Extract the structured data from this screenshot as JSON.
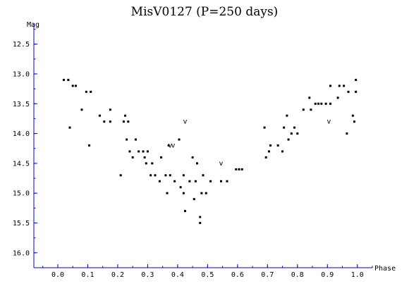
{
  "chart_data": {
    "type": "scatter",
    "title": "MisV0127 (P=250 days)",
    "xlabel": "Phase",
    "ylabel": "Mag",
    "xlim": [
      -0.08,
      1.05
    ],
    "ylim": [
      12.15,
      16.25
    ],
    "y_inverted": true,
    "x_ticks": [
      "0.0",
      "0.1",
      "0.2",
      "0.3",
      "0.4",
      "0.5",
      "0.6",
      "0.7",
      "0.8",
      "0.9",
      "1.0"
    ],
    "y_ticks": [
      "12.5",
      "13.0",
      "13.5",
      "14.0",
      "14.5",
      "15.0",
      "15.5",
      "16.0"
    ],
    "grid": false,
    "axis_color": "#0000cc",
    "point_color": "#000000",
    "series": [
      {
        "marker": "dot",
        "points": [
          [
            0.02,
            13.1
          ],
          [
            0.035,
            13.1
          ],
          [
            0.05,
            13.2
          ],
          [
            0.06,
            13.2
          ],
          [
            0.04,
            13.9
          ],
          [
            0.08,
            13.6
          ],
          [
            0.095,
            13.3
          ],
          [
            0.11,
            13.3
          ],
          [
            0.105,
            14.2
          ],
          [
            0.14,
            13.7
          ],
          [
            0.155,
            13.8
          ],
          [
            0.175,
            13.8
          ],
          [
            0.175,
            13.6
          ],
          [
            0.21,
            14.7
          ],
          [
            0.22,
            13.8
          ],
          [
            0.225,
            13.7
          ],
          [
            0.235,
            13.8
          ],
          [
            0.23,
            14.1
          ],
          [
            0.24,
            14.3
          ],
          [
            0.25,
            14.4
          ],
          [
            0.26,
            14.1
          ],
          [
            0.27,
            14.3
          ],
          [
            0.285,
            14.3
          ],
          [
            0.29,
            14.4
          ],
          [
            0.295,
            14.5
          ],
          [
            0.3,
            14.3
          ],
          [
            0.31,
            14.7
          ],
          [
            0.315,
            14.5
          ],
          [
            0.325,
            14.7
          ],
          [
            0.34,
            14.8
          ],
          [
            0.345,
            14.4
          ],
          [
            0.36,
            14.7
          ],
          [
            0.365,
            15.0
          ],
          [
            0.37,
            14.2
          ],
          [
            0.375,
            14.7
          ],
          [
            0.39,
            14.8
          ],
          [
            0.405,
            14.1
          ],
          [
            0.41,
            14.9
          ],
          [
            0.42,
            14.7
          ],
          [
            0.42,
            15.0
          ],
          [
            0.425,
            15.3
          ],
          [
            0.44,
            14.8
          ],
          [
            0.45,
            14.4
          ],
          [
            0.455,
            15.1
          ],
          [
            0.46,
            14.8
          ],
          [
            0.465,
            14.5
          ],
          [
            0.475,
            15.4
          ],
          [
            0.475,
            15.5
          ],
          [
            0.48,
            15.0
          ],
          [
            0.485,
            14.7
          ],
          [
            0.495,
            15.0
          ],
          [
            0.51,
            14.8
          ],
          [
            0.545,
            14.8
          ],
          [
            0.565,
            14.8
          ],
          [
            0.595,
            14.6
          ],
          [
            0.605,
            14.6
          ],
          [
            0.615,
            14.6
          ],
          [
            0.69,
            13.9
          ],
          [
            0.695,
            14.4
          ],
          [
            0.705,
            14.3
          ],
          [
            0.71,
            14.2
          ],
          [
            0.735,
            14.2
          ],
          [
            0.75,
            14.3
          ],
          [
            0.755,
            13.9
          ],
          [
            0.765,
            13.7
          ],
          [
            0.77,
            14.1
          ],
          [
            0.78,
            14.0
          ],
          [
            0.79,
            13.9
          ],
          [
            0.8,
            14.0
          ],
          [
            0.82,
            13.6
          ],
          [
            0.84,
            13.4
          ],
          [
            0.845,
            13.6
          ],
          [
            0.86,
            13.5
          ],
          [
            0.87,
            13.5
          ],
          [
            0.88,
            13.5
          ],
          [
            0.895,
            13.5
          ],
          [
            0.91,
            13.2
          ],
          [
            0.91,
            13.5
          ],
          [
            0.935,
            13.4
          ],
          [
            0.94,
            13.2
          ],
          [
            0.955,
            13.2
          ],
          [
            0.965,
            14.0
          ],
          [
            0.97,
            13.3
          ],
          [
            0.985,
            13.7
          ],
          [
            0.99,
            13.8
          ],
          [
            0.995,
            13.1
          ],
          [
            0.995,
            13.3
          ]
        ]
      },
      {
        "marker": "v",
        "points": [
          [
            0.425,
            13.8
          ],
          [
            0.375,
            14.2
          ],
          [
            0.385,
            14.2
          ],
          [
            0.545,
            14.5
          ],
          [
            0.905,
            13.8
          ]
        ]
      }
    ]
  }
}
